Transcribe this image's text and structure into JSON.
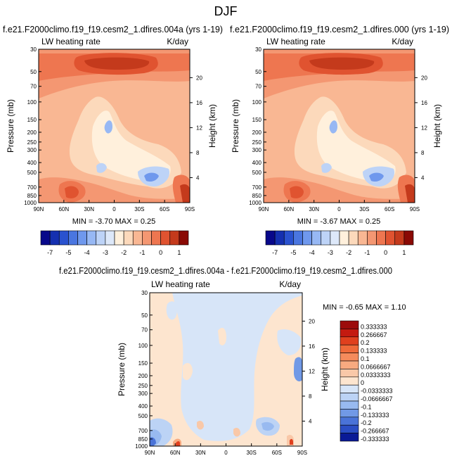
{
  "main_title": "DJF",
  "panels": [
    {
      "title": "f.e21.F2000climo.f19_f19.cesm2_1.dfires.004a (yrs 1-19)",
      "left_label": "LW heating rate",
      "right_label": "K/day",
      "min_max": "MIN = -3.70  MAX =  0.25"
    },
    {
      "title": "f.e21.F2000climo.f19_f19.cesm2_1.dfires.000 (yrs 1-19)",
      "left_label": "LW heating rate",
      "right_label": "K/day",
      "min_max": "MIN = -3.67  MAX =  0.25"
    },
    {
      "title": "f.e21.F2000climo.f19_f19.cesm2_1.dfires.004a - f.e21.F2000climo.f19_f19.cesm2_1.dfires.000",
      "left_label": "LW heating rate",
      "right_label": "K/day",
      "min_max": "MIN = -0.65  MAX =  1.10"
    }
  ],
  "chart_data": {
    "type": "heatmap",
    "y_label": "Pressure (mb)",
    "y2_label": "Height (km)",
    "x_ticks": [
      "90N",
      "60N",
      "30N",
      "0",
      "30S",
      "60S",
      "90S"
    ],
    "pressure_ticks": [
      "30",
      "50",
      "70",
      "100",
      "150",
      "200",
      "250",
      "300",
      "400",
      "500",
      "700",
      "850",
      "1000"
    ],
    "pressure_tick_values": [
      30,
      50,
      70,
      100,
      150,
      200,
      250,
      300,
      400,
      500,
      700,
      850,
      1000
    ],
    "height_ticks": [
      "20",
      "16",
      "12",
      "8",
      "4"
    ],
    "height_tick_values": [
      20,
      16,
      12,
      8,
      4
    ],
    "y_scale": "log",
    "y_range_mb": [
      30,
      1000
    ],
    "x_range": [
      90,
      -90
    ],
    "colorbar_top": {
      "labels": [
        "-7",
        "-5",
        "-4",
        "-3",
        "-2",
        "-1",
        "0",
        "1"
      ],
      "colors": [
        "#08088a",
        "#1530b0",
        "#2a52cf",
        "#4a76e0",
        "#6f98ed",
        "#97b8f4",
        "#bdd3f7",
        "#dde8f9",
        "#fff0dc",
        "#fcd9bb",
        "#f9b793",
        "#f49772",
        "#ee7650",
        "#e05330",
        "#c43a1c",
        "#8a0a05"
      ]
    },
    "colorbar_diff": {
      "labels": [
        "0.333333",
        "0.266667",
        "0.2",
        "0.133333",
        "0.1",
        "0.0666667",
        "0.0333333",
        "0",
        "-0.0333333",
        "-0.0666667",
        "-0.1",
        "-0.133333",
        "-0.2",
        "-0.266667",
        "-0.333333"
      ],
      "colors": [
        "#9c0b0b",
        "#c41a10",
        "#e0401e",
        "#ef6a3a",
        "#f58b5c",
        "#f7aa80",
        "#f9c8a8",
        "#fde5cf",
        "#d7e5f8",
        "#bcd3f5",
        "#98baf0",
        "#7199e6",
        "#4a73d8",
        "#2b4ec4",
        "#0a1a96"
      ]
    }
  }
}
